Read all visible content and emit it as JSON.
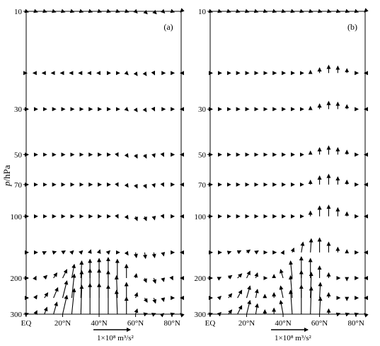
{
  "figure": {
    "ylabel_italic": "p",
    "ylabel_unit": "/hPa"
  },
  "chart_data": [
    {
      "type": "quiver",
      "panel_label": "(a)",
      "xlabel": "",
      "ylabel": "p/hPa",
      "x_ticks": [
        "EQ",
        "20°N",
        "40°N",
        "60°N",
        "80°N"
      ],
      "y_ticks": [
        10,
        30,
        50,
        70,
        100,
        200,
        300
      ],
      "xlim": [
        0,
        85
      ],
      "ylim_hPa": [
        300,
        10
      ],
      "y_scale": "log",
      "reference_vector_label": "1×10⁸ m³/s²",
      "levels_hPa": [
        10,
        20,
        30,
        50,
        70,
        100,
        150,
        200,
        250,
        300
      ],
      "latitudes_deg": [
        0,
        5,
        10,
        15,
        20,
        25,
        30,
        35,
        40,
        45,
        50,
        55,
        60,
        65,
        70,
        75,
        80,
        85
      ],
      "vectors_description": "weak equatorward flux in stratosphere; strong upward flux 25–60°N below 200 hPa",
      "vectors": [
        {
          "level": 10,
          "u": [
            0,
            0,
            0,
            0,
            0,
            0,
            0,
            0,
            0,
            0,
            0,
            0.1,
            0.2,
            0.3,
            0.3,
            0.2,
            0.1,
            0
          ],
          "v": [
            0,
            0,
            0,
            0,
            0,
            0,
            0,
            0,
            0,
            0,
            0,
            -0.1,
            -0.2,
            -0.3,
            -0.3,
            -0.2,
            -0.1,
            0
          ]
        },
        {
          "level": 20,
          "u": [
            -0.2,
            -0.2,
            -0.2,
            -0.2,
            -0.2,
            -0.2,
            -0.2,
            -0.2,
            -0.1,
            0,
            0.1,
            0.2,
            0.2,
            0.2,
            0.1,
            0.1,
            0,
            0
          ],
          "v": [
            0,
            0,
            0,
            0,
            0,
            0,
            0,
            0,
            0,
            0,
            -0.1,
            -0.2,
            -0.3,
            -0.3,
            -0.2,
            -0.1,
            0,
            0
          ]
        },
        {
          "level": 30,
          "u": [
            0,
            0,
            0,
            0,
            0,
            0,
            0,
            0,
            0,
            0,
            0.1,
            0.2,
            0.2,
            0.2,
            0.1,
            0.1,
            0,
            0
          ],
          "v": [
            0,
            0,
            0,
            0,
            0,
            0,
            0,
            0,
            0,
            0,
            -0.1,
            -0.2,
            -0.3,
            -0.3,
            -0.2,
            -0.1,
            0,
            0
          ]
        },
        {
          "level": 50,
          "u": [
            0,
            0,
            0,
            0,
            0,
            0,
            0,
            0,
            0,
            0,
            0.1,
            0.2,
            0.2,
            0.2,
            0.1,
            0.1,
            0,
            0
          ],
          "v": [
            0,
            0,
            0,
            0,
            0,
            0,
            0,
            0,
            0,
            -0.1,
            -0.2,
            -0.3,
            -0.4,
            -0.4,
            -0.3,
            -0.2,
            -0.1,
            0
          ]
        },
        {
          "level": 70,
          "u": [
            0,
            0,
            0,
            0,
            0,
            0,
            0,
            0,
            0,
            0,
            0.1,
            0.2,
            0.2,
            0.2,
            0.1,
            0.1,
            0,
            0
          ],
          "v": [
            0,
            0,
            0,
            0,
            0,
            0,
            0,
            0,
            0,
            -0.1,
            -0.2,
            -0.3,
            -0.4,
            -0.4,
            -0.3,
            -0.2,
            -0.1,
            0
          ]
        },
        {
          "level": 100,
          "u": [
            0,
            0,
            0,
            0,
            0,
            0,
            0,
            0,
            0,
            0,
            0.1,
            0.2,
            0.2,
            0.2,
            0.1,
            0.1,
            0,
            0
          ],
          "v": [
            0,
            0,
            0,
            0,
            0,
            0,
            0,
            0,
            0,
            -0.1,
            -0.2,
            -0.3,
            -0.5,
            -0.5,
            -0.4,
            -0.2,
            -0.1,
            0
          ]
        },
        {
          "level": 150,
          "u": [
            0,
            0.1,
            0.2,
            0.3,
            0.3,
            0.2,
            0.2,
            0.1,
            0.1,
            0.2,
            0.2,
            0.2,
            0.1,
            0.1,
            0.1,
            0.1,
            0,
            0
          ],
          "v": [
            0,
            0,
            0.1,
            0.1,
            0.2,
            0.2,
            0.2,
            0.3,
            0.3,
            0.2,
            0,
            -0.3,
            -0.6,
            -0.7,
            -0.6,
            -0.4,
            -0.2,
            0
          ]
        },
        {
          "level": 200,
          "u": [
            0,
            0.1,
            0.3,
            0.4,
            0.5,
            0.3,
            0.1,
            0,
            0,
            0,
            0,
            0,
            0.1,
            0.2,
            0.2,
            0.1,
            0.1,
            0
          ],
          "v": [
            0,
            0.2,
            0.3,
            0.6,
            1.0,
            1.6,
            2.0,
            2.2,
            2.3,
            2.4,
            2.2,
            1.6,
            0.5,
            -0.5,
            -0.6,
            -0.4,
            -0.2,
            0
          ]
        },
        {
          "level": 250,
          "u": [
            0,
            0.2,
            0.4,
            0.5,
            0.5,
            0.3,
            0.1,
            0,
            0,
            0,
            -0.1,
            0,
            0.2,
            0.3,
            0.2,
            0.1,
            0,
            0
          ],
          "v": [
            0,
            0.3,
            0.6,
            1.2,
            2.0,
            2.8,
            3.2,
            3.4,
            3.4,
            3.2,
            2.6,
            1.8,
            0.6,
            -0.5,
            -0.6,
            -0.4,
            -0.2,
            0
          ]
        },
        {
          "level": 300,
          "u": [
            0,
            0.2,
            0.3,
            0.4,
            0.5,
            0.3,
            0.1,
            0,
            0,
            0,
            -0.1,
            0,
            0.2,
            0.3,
            0.2,
            0.1,
            0,
            0
          ],
          "v": [
            0,
            0.4,
            0.8,
            1.4,
            2.2,
            3.0,
            3.4,
            3.6,
            3.6,
            3.4,
            2.8,
            2.0,
            0.6,
            -0.4,
            -0.5,
            -0.3,
            -0.1,
            0
          ]
        }
      ]
    },
    {
      "type": "quiver",
      "panel_label": "(b)",
      "xlabel": "",
      "ylabel": "",
      "x_ticks": [
        "EQ",
        "20°N",
        "40°N",
        "60°N",
        "80°N"
      ],
      "y_ticks": [
        10,
        30,
        50,
        70,
        100,
        200,
        300
      ],
      "xlim": [
        0,
        85
      ],
      "ylim_hPa": [
        300,
        10
      ],
      "y_scale": "log",
      "reference_vector_label": "1×10⁸ m³/s²",
      "levels_hPa": [
        10,
        20,
        30,
        50,
        70,
        100,
        150,
        200,
        250,
        300
      ],
      "latitudes_deg": [
        0,
        5,
        10,
        15,
        20,
        25,
        30,
        35,
        40,
        45,
        50,
        55,
        60,
        65,
        70,
        75,
        80,
        85
      ],
      "vectors_description": "upward flux 55–75°N throughout stratosphere; strong upward flux 40–65°N below 150 hPa",
      "vectors": [
        {
          "level": 10,
          "u": [
            0,
            0,
            0,
            0,
            0,
            0.1,
            0.1,
            0.1,
            0.1,
            0.1,
            0.1,
            0.1,
            0,
            0,
            0,
            0,
            0,
            0
          ],
          "v": [
            0,
            0,
            0,
            0,
            0,
            0,
            0,
            0,
            0,
            0,
            0,
            0,
            0,
            0,
            0,
            0,
            0,
            0
          ]
        },
        {
          "level": 20,
          "u": [
            0.2,
            0.2,
            0.2,
            0.2,
            0.2,
            0.2,
            0.2,
            0.2,
            0.2,
            0.1,
            0.1,
            0,
            0,
            0,
            0,
            0,
            0,
            0
          ],
          "v": [
            0,
            0,
            0,
            0,
            0,
            0,
            0,
            0,
            0,
            0,
            0,
            0.3,
            0.6,
            0.9,
            0.8,
            0.5,
            0.2,
            0
          ]
        },
        {
          "level": 30,
          "u": [
            0.1,
            0.1,
            0.1,
            0.1,
            0.1,
            0.1,
            0.1,
            0.1,
            0.1,
            0.1,
            0,
            0,
            0,
            0,
            0,
            0,
            0,
            0
          ],
          "v": [
            0,
            0,
            0,
            0,
            0,
            0,
            0,
            0,
            0,
            0,
            0,
            0.3,
            0.6,
            0.9,
            0.8,
            0.5,
            0.2,
            0
          ]
        },
        {
          "level": 50,
          "u": [
            0,
            0,
            0,
            0,
            0,
            0,
            0,
            0,
            0,
            0,
            0,
            0,
            0,
            0,
            0,
            0,
            0,
            0
          ],
          "v": [
            0,
            0,
            0,
            0,
            0,
            0,
            0,
            0,
            0,
            -0.1,
            0,
            0.4,
            0.8,
            1.0,
            0.8,
            0.5,
            0.2,
            0
          ]
        },
        {
          "level": 70,
          "u": [
            0,
            0,
            0,
            0,
            0,
            0,
            0,
            0,
            0,
            0,
            0,
            0,
            0,
            0,
            0,
            0,
            0,
            0
          ],
          "v": [
            0,
            0,
            0,
            0,
            0,
            0,
            0,
            0,
            0,
            -0.1,
            0,
            0.5,
            1.0,
            1.2,
            0.9,
            0.5,
            0.2,
            0
          ]
        },
        {
          "level": 100,
          "u": [
            0,
            0,
            0,
            0,
            0,
            0,
            0,
            0,
            0,
            0,
            0,
            0,
            0,
            0,
            0,
            0,
            0,
            0
          ],
          "v": [
            0,
            0,
            0,
            0,
            0,
            0,
            0,
            0,
            0,
            -0.1,
            0,
            0.6,
            1.2,
            1.3,
            1.0,
            0.5,
            0.2,
            0
          ]
        },
        {
          "level": 150,
          "u": [
            0.1,
            0.2,
            0.3,
            0.4,
            0.4,
            0.3,
            0.2,
            0,
            0.1,
            0.2,
            0.2,
            0.1,
            0,
            0,
            0,
            0,
            0,
            0
          ],
          "v": [
            0,
            0,
            0.1,
            0.2,
            0.3,
            0.2,
            0,
            0,
            0.2,
            0.5,
            1.2,
            1.6,
            1.7,
            1.2,
            0.6,
            0.3,
            0.1,
            0
          ]
        },
        {
          "level": 200,
          "u": [
            0,
            0.2,
            0.4,
            0.5,
            0.4,
            0.2,
            0,
            0,
            -0.3,
            -0.2,
            0,
            0,
            0,
            0,
            0,
            0,
            0,
            0
          ],
          "v": [
            0,
            0.1,
            0.3,
            0.5,
            0.8,
            0.6,
            0.2,
            0.4,
            1.0,
            2.0,
            2.5,
            2.3,
            1.4,
            0.6,
            0,
            -0.3,
            -0.2,
            0
          ]
        },
        {
          "level": 250,
          "u": [
            0,
            0.2,
            0.4,
            0.5,
            0.4,
            0.2,
            0,
            0,
            -0.3,
            -0.2,
            0,
            0.1,
            0.1,
            0,
            0,
            0,
            0,
            0
          ],
          "v": [
            0,
            0.2,
            0.5,
            0.9,
            1.4,
            1.0,
            0.4,
            0.6,
            1.4,
            2.6,
            3.2,
            3.0,
            1.8,
            0.6,
            0,
            -0.3,
            -0.2,
            0
          ]
        },
        {
          "level": 300,
          "u": [
            0,
            0.2,
            0.4,
            0.5,
            0.4,
            0.2,
            0,
            0,
            -0.3,
            -0.2,
            0,
            0.1,
            0.1,
            0,
            0,
            0,
            0,
            0
          ],
          "v": [
            0,
            0.2,
            0.5,
            1.0,
            1.6,
            1.2,
            0.5,
            0.7,
            1.6,
            2.8,
            3.4,
            3.2,
            2.0,
            0.6,
            0,
            -0.2,
            -0.1,
            0
          ]
        }
      ]
    }
  ]
}
